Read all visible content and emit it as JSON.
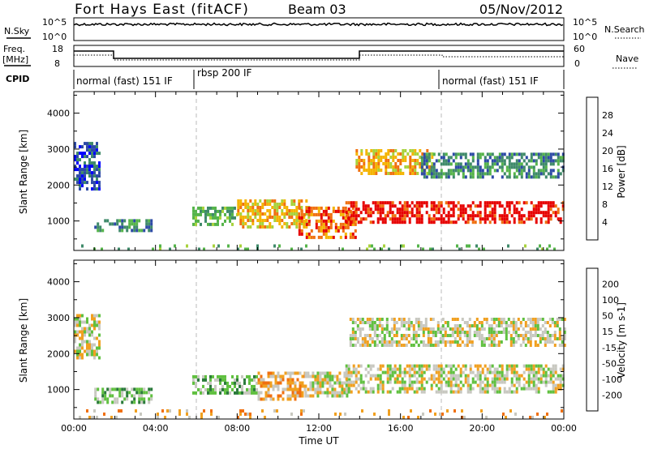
{
  "header": {
    "station": "Fort Hays East (fitACF)",
    "beam": "Beam 03",
    "date": "05/Nov/2012"
  },
  "top_panels": {
    "nsky_label": "N.Sky",
    "nsearch_label": "N.Search",
    "noise_ticks": [
      "10^5",
      "10^0"
    ],
    "freq_label_1": "Freq.",
    "freq_label_2": "[MHz]",
    "freq_ticks": [
      "18",
      "8"
    ],
    "nave_label": "Nave",
    "nave_ticks": [
      "60",
      "0"
    ],
    "cpid_label": "CPID",
    "modes": [
      "normal (fast) 151 IF",
      "rbsp 200 IF",
      "normal (fast) 151 IF"
    ]
  },
  "colors": {
    "power": [
      "#0000ff",
      "#2d4aa6",
      "#3f8a6a",
      "#55b44a",
      "#a8d23c",
      "#f4b400",
      "#f07010",
      "#e60000"
    ],
    "velocity": [
      "#2d3caa",
      "#3a6ad0",
      "#2a7a3a",
      "#60c040",
      "#c8c8c0",
      "#f0a020",
      "#f07010",
      "#e02020",
      "#e60000"
    ]
  },
  "chart_data": [
    {
      "type": "heatmap",
      "name": "power",
      "xlabel": "Time UT",
      "ylabel": "Slant Range [km]",
      "xlim": [
        0,
        24
      ],
      "ylim": [
        180,
        4600
      ],
      "yticks": [
        1000,
        2000,
        3000,
        4000
      ],
      "colorbar_label": "Power [dB]",
      "colorbar_ticks": [
        "4",
        "8",
        "12",
        "16",
        "20",
        "24",
        "28"
      ],
      "regions": [
        {
          "t0": 0.0,
          "t1": 1.2,
          "r0": 1900,
          "r1": 3200,
          "level": 1
        },
        {
          "t0": 1.0,
          "t1": 3.8,
          "r0": 700,
          "r1": 1050,
          "level": 2
        },
        {
          "t0": 5.8,
          "t1": 8.0,
          "r0": 900,
          "r1": 1400,
          "level": 3
        },
        {
          "t0": 8.0,
          "t1": 11.5,
          "r0": 800,
          "r1": 1600,
          "level": 5
        },
        {
          "t0": 11.0,
          "t1": 13.8,
          "r0": 500,
          "r1": 1400,
          "level": 6
        },
        {
          "t0": 13.3,
          "t1": 24.0,
          "r0": 1000,
          "r1": 1550,
          "level": 7
        },
        {
          "t0": 13.8,
          "t1": 17.5,
          "r0": 2300,
          "r1": 3000,
          "level": 5
        },
        {
          "t0": 17.0,
          "t1": 24.0,
          "r0": 2200,
          "r1": 2900,
          "level": 2
        },
        {
          "t0": 0.0,
          "t1": 24.0,
          "r0": 180,
          "r1": 350,
          "level": 3
        }
      ]
    },
    {
      "type": "heatmap",
      "name": "velocity",
      "xlabel": "Time UT",
      "ylabel": "Slant Range [km]",
      "xlim": [
        0,
        24
      ],
      "ylim": [
        180,
        4600
      ],
      "yticks": [
        1000,
        2000,
        3000,
        4000
      ],
      "xticks": [
        "00:00",
        "04:00",
        "08:00",
        "12:00",
        "16:00",
        "20:00",
        "00:00"
      ],
      "colorbar_label": "Velocity [m s-1]",
      "colorbar_ticks": [
        "200",
        "100",
        "50",
        "15",
        "-15",
        "-50",
        "-100",
        "-200"
      ],
      "regions": [
        {
          "t0": 0.0,
          "t1": 1.2,
          "r0": 1900,
          "r1": 3100,
          "level": 4
        },
        {
          "t0": 1.0,
          "t1": 3.8,
          "r0": 600,
          "r1": 1050,
          "level": 3
        },
        {
          "t0": 5.8,
          "t1": 9.0,
          "r0": 900,
          "r1": 1400,
          "level": 3
        },
        {
          "t0": 9.0,
          "t1": 11.3,
          "r0": 700,
          "r1": 1500,
          "level": 5
        },
        {
          "t0": 11.3,
          "t1": 13.5,
          "r0": 800,
          "r1": 1500,
          "level": 4
        },
        {
          "t0": 13.3,
          "t1": 24.0,
          "r0": 900,
          "r1": 1700,
          "level": 4
        },
        {
          "t0": 13.5,
          "t1": 24.0,
          "r0": 2200,
          "r1": 3000,
          "level": 4
        },
        {
          "t0": 0.0,
          "t1": 24.0,
          "r0": 180,
          "r1": 450,
          "level": 5
        }
      ]
    }
  ]
}
